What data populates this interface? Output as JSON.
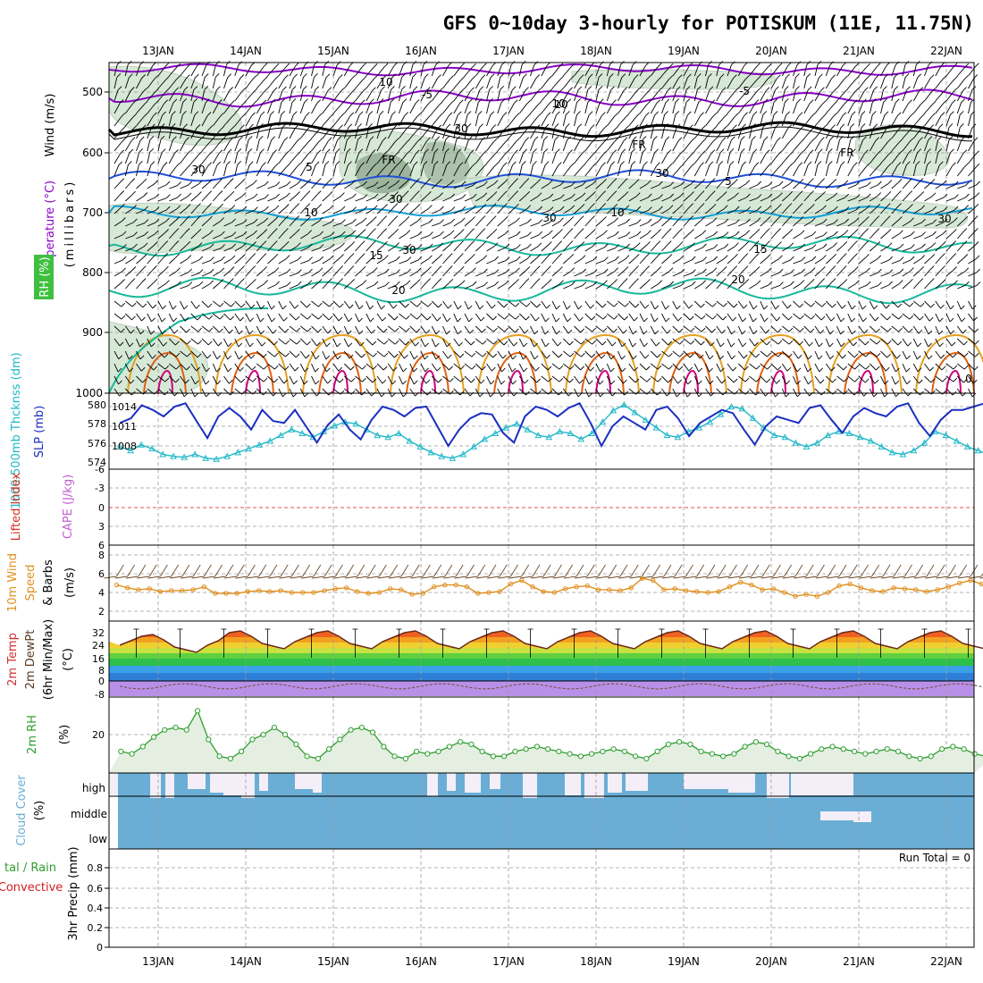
{
  "title": "GFS 0~10day 3-hourly for POTISKUM (11E, 11.75N)",
  "dates": [
    "13JAN",
    "14JAN",
    "15JAN",
    "16JAN",
    "17JAN",
    "18JAN",
    "19JAN",
    "20JAN",
    "21JAN",
    "22JAN"
  ],
  "colors": {
    "purple": "#8a00c8",
    "blue1": "#1f4fd8",
    "blue2": "#13a0d8",
    "teal": "#17b89a",
    "orange": "#e6a020",
    "darkorange": "#e06010",
    "magenta": "#d0007a",
    "rhfill": "#cfe5cf",
    "rhdark": "#7f9a7f",
    "wind": "#000000",
    "slp": "#1a2fc0",
    "thick": "#20b8c8",
    "wind10": "#e09020",
    "cloudfill": "#6aaed6",
    "precipgreen": "#2e9e2e",
    "precipred": "#d02020"
  },
  "panels": {
    "upper": {
      "ylabel_wind": "Wind (m/s)",
      "ylabel_temp": "Temperature (°C)",
      "ylabel_mb": "(millibars)",
      "ylabel_rh": "RH (%)",
      "yticks": [
        "500",
        "600",
        "700",
        "800",
        "900",
        "1000"
      ],
      "contour_labels": [
        "10",
        "-5",
        "-5",
        "10",
        "30",
        "FR",
        "FR",
        "FR",
        "30",
        "5",
        "5",
        "30",
        "10",
        "10",
        "30",
        "15",
        "15",
        "30",
        "20",
        "20",
        "0",
        "30",
        "30",
        "10"
      ]
    },
    "slp": {
      "ylabel_thick": "1000-500mb Thcknss (dm)",
      "ylabel_slp": "SLP (mb)",
      "yticks_left": [
        "580",
        "578",
        "576",
        "574"
      ],
      "yticks_right": [
        "1014",
        "1011",
        "1008"
      ]
    },
    "li": {
      "ylabel_li": "Lifted Index",
      "ylabel_cape": "CAPE (J/kg)",
      "yticks": [
        "-6",
        "-3",
        "0",
        "3",
        "6"
      ]
    },
    "wind10": {
      "ylabel1": "10m Wind",
      "ylabel2": "Speed",
      "ylabel3": "& Barbs",
      "ylabel_unit": "(m/s)",
      "yticks": [
        "8",
        "6",
        "4",
        "2"
      ]
    },
    "temp2m": {
      "ylabel1": "2m Temp",
      "ylabel2": "2m DewPt",
      "ylabel3": "(6hr Min/Max)",
      "ylabel_unit": "(°C)",
      "yticks": [
        "32",
        "24",
        "16",
        "8",
        "0",
        "-8"
      ]
    },
    "rh2m": {
      "ylabel": "2m RH",
      "ylabel_unit": "(%)",
      "yticks": [
        "20"
      ]
    },
    "cloud": {
      "ylabel": "Cloud Cover",
      "ylabel_unit": "(%)",
      "levels": [
        "high",
        "middle",
        "low"
      ]
    },
    "precip": {
      "ylabel_a": "tal / Rain",
      "ylabel_b": "Convective",
      "ylabel_c": "3hr Precip (mm)",
      "yticks": [
        "0.8",
        "0.6",
        "0.4",
        "0.2",
        "0"
      ],
      "run_total": "Run Total = 0"
    }
  },
  "chart_data": [
    {
      "type": "line",
      "panel": "slp",
      "series": [
        {
          "name": "SLP (mb)",
          "values": [
            1011.5,
            1012.2,
            1014.2,
            1013.5,
            1012.5,
            1014.0,
            1014.5,
            1011.8,
            1009.2,
            1012.5,
            1013.8,
            1012.5,
            1010.5,
            1013.5,
            1011.8,
            1011.5,
            1013.5,
            1011.0,
            1008.5,
            1011.2,
            1012.8,
            1010.5,
            1009.0,
            1012.0,
            1014.0,
            1013.5,
            1012.5,
            1013.8,
            1014.0,
            1011.0,
            1008.0,
            1010.5,
            1012.2,
            1013.0,
            1012.8,
            1010.0,
            1008.5,
            1012.5,
            1014.0,
            1013.5,
            1012.5,
            1013.8,
            1014.5,
            1011.5,
            1008.0,
            1011.0,
            1012.5,
            1011.5,
            1010.5,
            1013.5,
            1014.0,
            1012.2,
            1009.5,
            1011.5,
            1012.5,
            1013.5,
            1013.0,
            1010.5,
            1008.2,
            1011.0,
            1012.5,
            1012.0,
            1011.5,
            1013.8,
            1014.2,
            1012.0,
            1010.0,
            1012.5,
            1013.8,
            1013.0,
            1012.5,
            1014.0,
            1014.5,
            1011.5,
            1009.5,
            1012.0,
            1013.5,
            1013.5,
            1014.0,
            1014.5
          ]
        },
        {
          "name": "1000-500mb Thickness (dm)",
          "values": [
            575.6,
            575.2,
            575.8,
            575.4,
            574.8,
            574.6,
            574.5,
            574.8,
            574.4,
            574.3,
            574.6,
            575.0,
            575.4,
            575.8,
            576.2,
            576.8,
            577.4,
            577.0,
            576.6,
            577.2,
            577.8,
            578.2,
            578.0,
            577.4,
            576.8,
            576.6,
            577.0,
            576.2,
            575.6,
            575.0,
            574.6,
            574.4,
            574.8,
            575.6,
            576.4,
            577.0,
            577.6,
            578.0,
            577.4,
            576.8,
            576.6,
            577.2,
            577.0,
            576.4,
            577.0,
            578.2,
            579.4,
            580.0,
            579.2,
            578.4,
            577.6,
            576.8,
            576.6,
            577.2,
            577.6,
            578.2,
            579.0,
            579.8,
            579.6,
            578.6,
            577.6,
            576.8,
            576.6,
            576.0,
            575.6,
            576.0,
            576.8,
            577.2,
            577.0,
            576.6,
            576.2,
            575.6,
            575.0,
            574.8,
            575.2,
            576.0,
            577.2,
            576.8,
            576.2,
            575.6,
            575.2,
            574.8,
            574.6
          ]
        }
      ]
    },
    {
      "type": "line",
      "panel": "wind10",
      "series": [
        {
          "name": "10m Wind Speed (m/s)",
          "values": [
            4.8,
            4.5,
            4.3,
            4.4,
            4.1,
            4.2,
            4.2,
            4.3,
            4.6,
            3.9,
            3.9,
            3.9,
            4.1,
            4.2,
            4.1,
            4.2,
            4.0,
            4.0,
            4.0,
            4.2,
            4.4,
            4.5,
            4.1,
            3.9,
            4.0,
            4.4,
            4.3,
            3.8,
            3.9,
            4.6,
            4.8,
            4.8,
            4.6,
            3.9,
            4.0,
            4.1,
            4.9,
            5.3,
            4.6,
            4.1,
            4.0,
            4.4,
            4.6,
            4.7,
            4.3,
            4.3,
            4.2,
            4.5,
            5.5,
            5.3,
            4.3,
            4.4,
            4.2,
            4.1,
            4.0,
            4.1,
            4.6,
            5.1,
            4.8,
            4.3,
            4.4,
            4.0,
            3.6,
            3.8,
            3.6,
            4.0,
            4.7,
            4.9,
            4.5,
            4.2,
            4.1,
            4.5,
            4.4,
            4.3,
            4.1,
            4.3,
            4.6,
            5.0,
            5.3,
            4.9,
            4.4,
            4.4,
            4.3,
            4.6,
            4.4
          ]
        }
      ]
    },
    {
      "type": "line",
      "panel": "rh2m",
      "series": [
        {
          "name": "2m RH (%)",
          "values": [
            17,
            16,
            19,
            23,
            26,
            27,
            26,
            34,
            22,
            15,
            14,
            17,
            22,
            24,
            27,
            24,
            20,
            15,
            14,
            18,
            22,
            26,
            27,
            25,
            19,
            15,
            14,
            17,
            16,
            17,
            19,
            21,
            20,
            17,
            15,
            15,
            17,
            18,
            19,
            18,
            17,
            16,
            15,
            16,
            17,
            18,
            17,
            15,
            14,
            17,
            20,
            21,
            20,
            17,
            16,
            15,
            16,
            19,
            21,
            20,
            17,
            15,
            14,
            16,
            18,
            19,
            18,
            17,
            16,
            17,
            18,
            17,
            15,
            14,
            15,
            18,
            19,
            18,
            16,
            15,
            16,
            20,
            24
          ]
        }
      ]
    },
    {
      "type": "bar",
      "panel": "precip",
      "series": [
        {
          "name": "3hr Precip (mm)",
          "values": [
            0
          ]
        }
      ],
      "ylim": [
        0,
        0.9
      ]
    }
  ]
}
